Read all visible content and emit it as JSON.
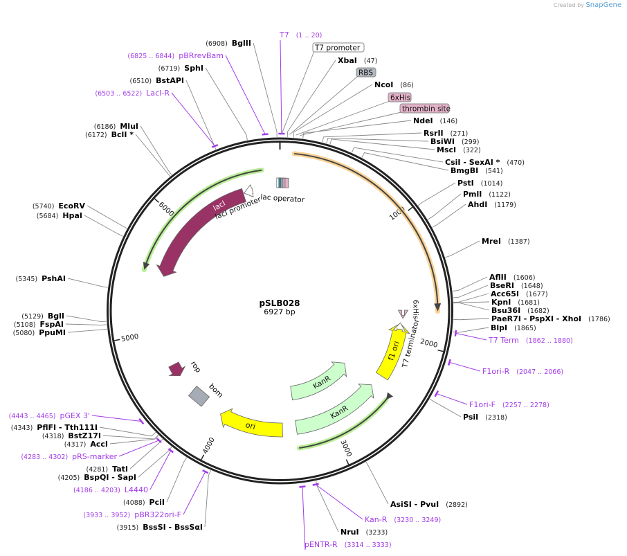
{
  "credit": {
    "prefix": "Created by",
    "brand": "SnapGene"
  },
  "plasmid": {
    "name": "pSLB028",
    "length_label": "6927 bp",
    "length": 6927
  },
  "ticks": [
    "1000",
    "2000",
    "3000",
    "4000",
    "5000",
    "6000"
  ],
  "enzymes": [
    {
      "name": "XbaI",
      "pos": 47
    },
    {
      "name": "NcoI",
      "pos": 86
    },
    {
      "name": "NdeI",
      "pos": 146
    },
    {
      "name": "RsrII",
      "pos": 271
    },
    {
      "name": "BsiWI",
      "pos": 299
    },
    {
      "name": "MscI",
      "pos": 322
    },
    {
      "name": "CsiI  - SexAI *",
      "pos": 470
    },
    {
      "name": "BmgBI",
      "pos": 541
    },
    {
      "name": "PstI",
      "pos": 1014
    },
    {
      "name": "PmlI",
      "pos": 1122
    },
    {
      "name": "AhdI",
      "pos": 1179
    },
    {
      "name": "MreI",
      "pos": 1387
    },
    {
      "name": "AflII",
      "pos": 1606
    },
    {
      "name": "BseRI",
      "pos": 1648
    },
    {
      "name": "Acc65I",
      "pos": 1677
    },
    {
      "name": "KpnI",
      "pos": 1681
    },
    {
      "name": "Bsu36I",
      "pos": 1682
    },
    {
      "name": "PaeR7I  - PspXI  - XhoI",
      "pos": 1786
    },
    {
      "name": "BlpI",
      "pos": 1865
    },
    {
      "name": "PsiI",
      "pos": 2318
    },
    {
      "name": "AsiSI  - PvuI",
      "pos": 2892
    },
    {
      "name": "NruI",
      "pos": 3233
    },
    {
      "name": "BssSI  - BssSαI",
      "pos": 3915
    },
    {
      "name": "PciI",
      "pos": 4088
    },
    {
      "name": "BspQI  - SapI",
      "pos": 4205
    },
    {
      "name": "TatI",
      "pos": 4281
    },
    {
      "name": "AccI",
      "pos": 4317
    },
    {
      "name": "BstZ17I",
      "pos": 4318
    },
    {
      "name": "PflFI  - Tth111I",
      "pos": 4343
    },
    {
      "name": "PpuMI",
      "pos": 5080
    },
    {
      "name": "FspAI",
      "pos": 5108
    },
    {
      "name": "BglI",
      "pos": 5129
    },
    {
      "name": "PshAI",
      "pos": 5345
    },
    {
      "name": "HpaI",
      "pos": 5684
    },
    {
      "name": "EcoRV",
      "pos": 5740
    },
    {
      "name": "BclI *",
      "pos": 6172
    },
    {
      "name": "MluI",
      "pos": 6186
    },
    {
      "name": "BstAPI",
      "pos": 6510
    },
    {
      "name": "SphI",
      "pos": 6719
    },
    {
      "name": "BglII",
      "pos": 6908
    }
  ],
  "primers": [
    {
      "name": "T7",
      "start": 1,
      "end": 20,
      "range": "(1 .. 20)"
    },
    {
      "name": "T7 Term",
      "start": 1862,
      "end": 1880,
      "range": "(1862 .. 1880)"
    },
    {
      "name": "F1ori-R",
      "start": 2047,
      "end": 2066,
      "range": "(2047 .. 2066)"
    },
    {
      "name": "F1ori-F",
      "start": 2257,
      "end": 2278,
      "range": "(2257 .. 2278)"
    },
    {
      "name": "Kan-R",
      "start": 3230,
      "end": 3249,
      "range": "(3230 .. 3249)"
    },
    {
      "name": "pENTR-R",
      "start": 3314,
      "end": 3333,
      "range": "(3314 .. 3333)"
    },
    {
      "name": "pBR322ori-F",
      "start": 3933,
      "end": 3952,
      "range": "(3933 .. 3952)"
    },
    {
      "name": "L4440",
      "start": 4186,
      "end": 4203,
      "range": "(4186 .. 4203)"
    },
    {
      "name": "pRS-marker",
      "start": 4283,
      "end": 4302,
      "range": "(4283 .. 4302)"
    },
    {
      "name": "pGEX 3'",
      "start": 4443,
      "end": 4465,
      "range": "(4443 .. 4465)"
    },
    {
      "name": "LacI-R",
      "start": 6503,
      "end": 6522,
      "range": "(6503 .. 6522)"
    },
    {
      "name": "pBRrevBam",
      "start": 6825,
      "end": 6844,
      "range": "(6825 .. 6844)"
    }
  ],
  "feature_callouts": [
    {
      "name": "T7 promoter",
      "pos": 10,
      "fill": "#ffffff"
    },
    {
      "name": "RBS",
      "pos": 60,
      "fill": "#b4b8c0"
    },
    {
      "name": "6xHis",
      "pos": 100,
      "fill": "#e3b3c8"
    },
    {
      "name": "thrombin site",
      "pos": 125,
      "fill": "#e3b3c8"
    }
  ],
  "features": [
    {
      "name": "",
      "kind": "orf",
      "start": 100,
      "end": 1735,
      "dir": 1,
      "color": "#f7c77a"
    },
    {
      "name": "",
      "kind": "orf",
      "start": 6785,
      "end": 5520,
      "dir": -1,
      "color": "#a8ea7a"
    },
    {
      "name": "",
      "kind": "orf",
      "start": 3310,
      "end": 2500,
      "dir": 1,
      "color": "#a8ea7a"
    },
    {
      "name": "lacI",
      "kind": "cds",
      "start": 6594,
      "end": 5513,
      "dir": -1,
      "color": "#993366"
    },
    {
      "name": "lacI promoter",
      "kind": "promoter",
      "start": 6680,
      "end": 6600,
      "dir": -1,
      "color": "#ffffff"
    },
    {
      "name": "KanR",
      "kind": "cds",
      "start": 3310,
      "end": 2480,
      "dir": 1,
      "color": "#ccffcc"
    },
    {
      "name": "KanR",
      "kind": "cds",
      "start": 3310,
      "end": 2480,
      "dir": 1,
      "color": "#ccffcc"
    },
    {
      "name": "ori",
      "kind": "rep",
      "start": 3440,
      "end": 4040,
      "dir": -1,
      "color": "#ffff00"
    },
    {
      "name": "f1 ori",
      "kind": "rep",
      "start": 2360,
      "end": 1846,
      "dir": -1,
      "color": "#ffff00"
    },
    {
      "name": "T7 terminator",
      "kind": "terminator",
      "start": 1900,
      "end": 1840,
      "dir": -1,
      "color": "#ffffff"
    },
    {
      "name": "6xHis",
      "kind": "tag",
      "start": 1770,
      "end": 1800,
      "dir": 1,
      "color": "#e3b3c8"
    },
    {
      "name": "rop",
      "kind": "cds",
      "start": 4680,
      "end": 4560,
      "dir": -1,
      "color": "#993366"
    },
    {
      "name": "bom",
      "kind": "misc",
      "start": 4350,
      "end": 4250,
      "dir": 0,
      "color": "#a6acb5"
    },
    {
      "name": "lac operator",
      "kind": "misc",
      "start": 0,
      "end": 60,
      "dir": 0,
      "color": "#2a8fa6"
    }
  ],
  "colors": {
    "primer": "#a23be8",
    "backbone": "#222222"
  }
}
